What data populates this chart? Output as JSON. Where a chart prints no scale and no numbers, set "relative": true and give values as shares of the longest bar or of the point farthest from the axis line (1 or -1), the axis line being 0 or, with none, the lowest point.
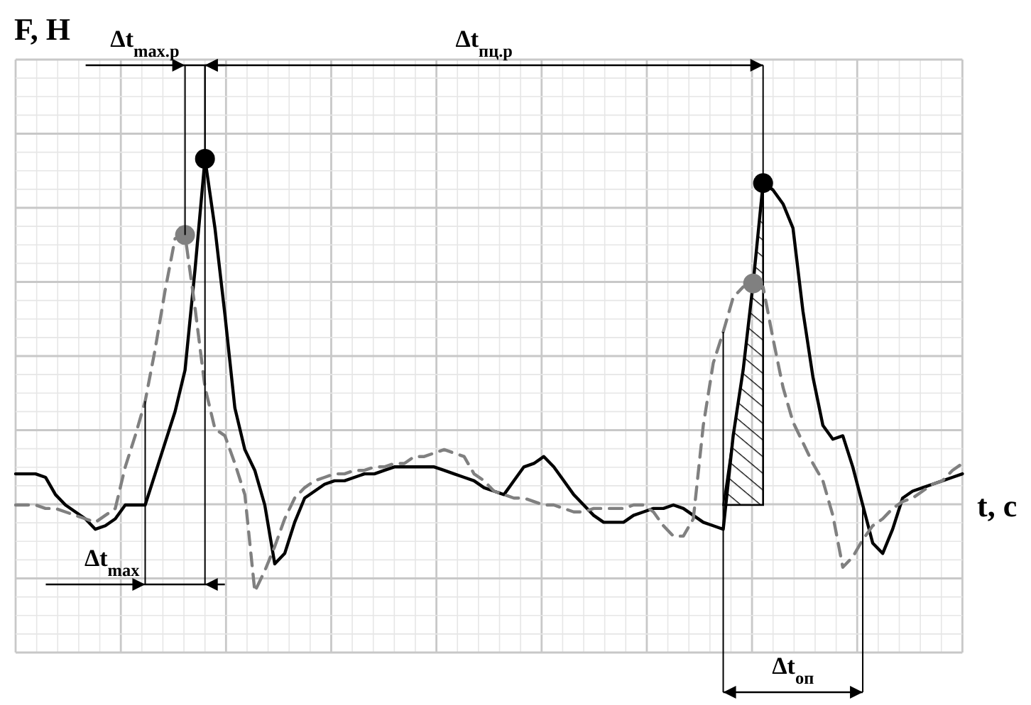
{
  "chart_data": {
    "type": "line",
    "xlabel": "t, c",
    "ylabel": "F, H",
    "relative": true,
    "grid": true,
    "categories": [
      null,
      null,
      null,
      null,
      null,
      null,
      null,
      null,
      null,
      null,
      null,
      null,
      null,
      null,
      null,
      null,
      null,
      null,
      null,
      null,
      null,
      null,
      null,
      null,
      null,
      null,
      null,
      null,
      null,
      null,
      null,
      null,
      null,
      null,
      null,
      null,
      null,
      null,
      null,
      null,
      null,
      null,
      null,
      null,
      null,
      null,
      null,
      null,
      null,
      null,
      null,
      null,
      null,
      null,
      null,
      null,
      null,
      null,
      null,
      null,
      null,
      null,
      null,
      null,
      null,
      null,
      null,
      null,
      null,
      null,
      null,
      null,
      null,
      null,
      null,
      null,
      null,
      null,
      null,
      null,
      null,
      null,
      null,
      null,
      null,
      null,
      null,
      null,
      null,
      null,
      null,
      null,
      null,
      null,
      null,
      null
    ],
    "series": [
      {
        "color": "#000000",
        "line_style": "solid",
        "values": [
          0.09,
          0.09,
          0.09,
          0.08,
          0.03,
          0,
          -0.02,
          -0.04,
          -0.07,
          -0.06,
          -0.04,
          0,
          0,
          0,
          0.09,
          0.18,
          0.27,
          0.39,
          0.68,
          1,
          0.8,
          0.55,
          0.28,
          0.16,
          0.1,
          0,
          -0.17,
          -0.14,
          -0.05,
          0.02,
          0.04,
          0.06,
          0.07,
          0.07,
          0.08,
          0.09,
          0.09,
          0.1,
          0.11,
          0.11,
          0.11,
          0.11,
          0.11,
          0.1,
          0.09,
          0.08,
          0.07,
          0.05,
          0.04,
          0.03,
          0.07,
          0.11,
          0.12,
          0.14,
          0.11,
          0.07,
          0.03,
          0,
          -0.03,
          -0.05,
          -0.05,
          -0.05,
          -0.03,
          -0.02,
          -0.01,
          -0.01,
          0,
          -0.01,
          -0.03,
          -0.05,
          -0.06,
          -0.07,
          0.2,
          0.39,
          0.64,
          0.93,
          0.91,
          0.87,
          0.8,
          0.56,
          0.37,
          0.23,
          0.19,
          0.2,
          0.11,
          0,
          -0.11,
          -0.14,
          -0.07,
          0.02,
          0.04,
          0.05,
          0.06,
          0.07,
          0.08,
          0.09
        ]
      },
      {
        "color": "#808080",
        "line_style": "dashed",
        "values": [
          0,
          0,
          0,
          -0.01,
          -0.01,
          -0.02,
          -0.03,
          -0.04,
          -0.05,
          -0.03,
          -0.01,
          0.11,
          0.2,
          0.3,
          0.45,
          0.62,
          0.77,
          0.78,
          0.57,
          0.34,
          0.22,
          0.2,
          0.12,
          0.03,
          -0.25,
          -0.19,
          -0.12,
          -0.04,
          0.02,
          0.05,
          0.07,
          0.08,
          0.09,
          0.09,
          0.1,
          0.1,
          0.11,
          0.11,
          0.12,
          0.12,
          0.14,
          0.14,
          0.15,
          0.16,
          0.15,
          0.14,
          0.09,
          0.07,
          0.04,
          0.03,
          0.02,
          0.02,
          0.01,
          0,
          0,
          -0.01,
          -0.02,
          -0.02,
          -0.01,
          -0.01,
          -0.01,
          -0.01,
          0,
          0,
          -0.02,
          -0.06,
          -0.09,
          -0.09,
          -0.04,
          0.23,
          0.41,
          0.5,
          0.6,
          0.63,
          0.64,
          0.63,
          0.48,
          0.34,
          0.24,
          0.18,
          0.12,
          0.07,
          -0.03,
          -0.18,
          -0.15,
          -0.1,
          -0.06,
          -0.04,
          -0.01,
          0.01,
          0.02,
          0.04,
          0.06,
          0.07,
          0.1,
          0.12
        ]
      }
    ],
    "annotations": [
      "Δt$_{max.р}$",
      "Δt$_{пц.р}$",
      "Δt$_{max}$",
      "Δt$_{оп}$"
    ]
  }
}
